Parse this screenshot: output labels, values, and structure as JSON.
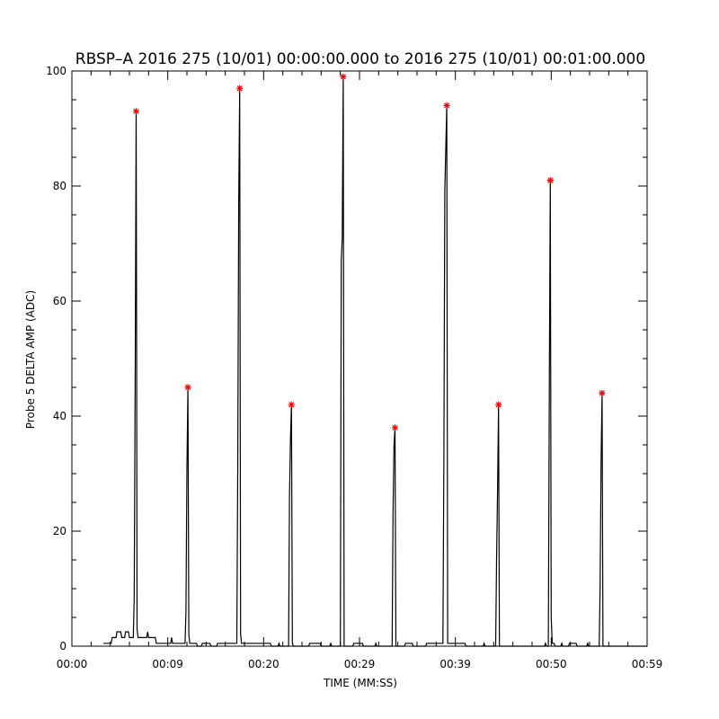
{
  "chart_data": {
    "type": "line",
    "title": "RBSP–A 2016 275 (10/01) 00:00:00.000 to 2016 275 (10/01) 00:01:00.000",
    "xlabel": "TIME (MM:SS)",
    "ylabel": "Probe 5 DELTA AMP (ADC)",
    "xlim": [
      0,
      60
    ],
    "ylim": [
      0,
      100
    ],
    "x_tick_labels": [
      {
        "t": 0,
        "label": "00:00"
      },
      {
        "t": 10,
        "label": "00:09"
      },
      {
        "t": 20,
        "label": "00:20"
      },
      {
        "t": 30,
        "label": "00:29"
      },
      {
        "t": 40,
        "label": "00:39"
      },
      {
        "t": 50,
        "label": "00:50"
      },
      {
        "t": 60,
        "label": "00:59"
      }
    ],
    "y_ticks": [
      0,
      20,
      40,
      60,
      80,
      100
    ],
    "grid": false,
    "marker_color": "#ff0000",
    "line_color": "#000000",
    "peaks": [
      {
        "t": 6.7,
        "value": 93
      },
      {
        "t": 12.1,
        "value": 45
      },
      {
        "t": 17.5,
        "value": 97
      },
      {
        "t": 22.9,
        "value": 42
      },
      {
        "t": 28.3,
        "value": 99
      },
      {
        "t": 33.7,
        "value": 38
      },
      {
        "t": 39.1,
        "value": 94
      },
      {
        "t": 44.5,
        "value": 42
      },
      {
        "t": 49.9,
        "value": 81
      },
      {
        "t": 55.3,
        "value": 44
      }
    ],
    "trace": [
      [
        3.3,
        0.5
      ],
      [
        4.1,
        0.5
      ],
      [
        4.2,
        1.5
      ],
      [
        4.6,
        1.5
      ],
      [
        4.7,
        2.5
      ],
      [
        5.1,
        2.5
      ],
      [
        5.2,
        1.5
      ],
      [
        5.5,
        1.5
      ],
      [
        5.6,
        2.5
      ],
      [
        5.9,
        2.5
      ],
      [
        6.0,
        1.5
      ],
      [
        6.4,
        1.5
      ],
      [
        6.5,
        8
      ],
      [
        6.6,
        46
      ],
      [
        6.7,
        93
      ],
      [
        6.75,
        54
      ],
      [
        6.8,
        3
      ],
      [
        6.9,
        1.5
      ],
      [
        7.8,
        1.5
      ],
      [
        7.9,
        2.5
      ],
      [
        8.0,
        1.5
      ],
      [
        8.7,
        1.5
      ],
      [
        8.8,
        0.5
      ],
      [
        10.3,
        0.5
      ],
      [
        10.4,
        1.5
      ],
      [
        10.5,
        0.5
      ],
      [
        11.8,
        0.5
      ],
      [
        11.9,
        6
      ],
      [
        12.0,
        31
      ],
      [
        12.1,
        45
      ],
      [
        12.2,
        2
      ],
      [
        12.3,
        0.5
      ],
      [
        13.0,
        0.5
      ],
      [
        13.1,
        0
      ],
      [
        13.5,
        0
      ],
      [
        13.6,
        0.5
      ],
      [
        14.4,
        0.5
      ],
      [
        14.5,
        0
      ],
      [
        15.1,
        0
      ],
      [
        15.2,
        0.5
      ],
      [
        17.2,
        0.5
      ],
      [
        17.3,
        30
      ],
      [
        17.4,
        77
      ],
      [
        17.5,
        97
      ],
      [
        17.6,
        2
      ],
      [
        17.7,
        0.5
      ],
      [
        20.7,
        0.5
      ],
      [
        20.8,
        0
      ],
      [
        21.5,
        0
      ],
      [
        21.6,
        0.5
      ],
      [
        21.7,
        0
      ],
      [
        22.6,
        0
      ],
      [
        22.7,
        26
      ],
      [
        22.8,
        36
      ],
      [
        22.9,
        42
      ],
      [
        23.0,
        0.5
      ],
      [
        23.1,
        0
      ],
      [
        24.7,
        0
      ],
      [
        24.8,
        0.5
      ],
      [
        25.9,
        0.5
      ],
      [
        26.0,
        0
      ],
      [
        26.9,
        0
      ],
      [
        27.0,
        0.5
      ],
      [
        27.1,
        0
      ],
      [
        28.0,
        0
      ],
      [
        28.1,
        67
      ],
      [
        28.2,
        71
      ],
      [
        28.3,
        99
      ],
      [
        28.4,
        0
      ],
      [
        29.3,
        0
      ],
      [
        29.4,
        0.5
      ],
      [
        30.3,
        0.5
      ],
      [
        30.4,
        0
      ],
      [
        31.6,
        0
      ],
      [
        31.7,
        0.5
      ],
      [
        31.8,
        0
      ],
      [
        33.4,
        0
      ],
      [
        33.5,
        23
      ],
      [
        33.6,
        35
      ],
      [
        33.7,
        38
      ],
      [
        33.8,
        0
      ],
      [
        34.7,
        0
      ],
      [
        34.8,
        0.5
      ],
      [
        35.5,
        0.5
      ],
      [
        35.6,
        0
      ],
      [
        36.9,
        0
      ],
      [
        37.0,
        0.5
      ],
      [
        38.7,
        0.5
      ],
      [
        38.8,
        33
      ],
      [
        38.9,
        79
      ],
      [
        39.1,
        94
      ],
      [
        39.2,
        0.5
      ],
      [
        41.0,
        0.5
      ],
      [
        41.1,
        0
      ],
      [
        42.9,
        0
      ],
      [
        43.0,
        0.5
      ],
      [
        43.1,
        0
      ],
      [
        44.2,
        0
      ],
      [
        44.3,
        15
      ],
      [
        44.4,
        27
      ],
      [
        44.5,
        42
      ],
      [
        44.6,
        0
      ],
      [
        49.3,
        0
      ],
      [
        49.4,
        0.5
      ],
      [
        49.5,
        0
      ],
      [
        49.7,
        0
      ],
      [
        49.8,
        45
      ],
      [
        49.9,
        81
      ],
      [
        50.0,
        5
      ],
      [
        50.1,
        0.5
      ],
      [
        50.3,
        0.5
      ],
      [
        50.4,
        0
      ],
      [
        51.0,
        0
      ],
      [
        51.1,
        0.5
      ],
      [
        51.2,
        0
      ],
      [
        51.8,
        0
      ],
      [
        51.9,
        0.5
      ],
      [
        52.6,
        0.5
      ],
      [
        52.7,
        0
      ],
      [
        53.7,
        0
      ],
      [
        53.8,
        0.5
      ],
      [
        53.9,
        0
      ],
      [
        55.0,
        0
      ],
      [
        55.1,
        10
      ],
      [
        55.2,
        32
      ],
      [
        55.3,
        44
      ],
      [
        55.4,
        0
      ],
      [
        60.0,
        0
      ]
    ]
  }
}
